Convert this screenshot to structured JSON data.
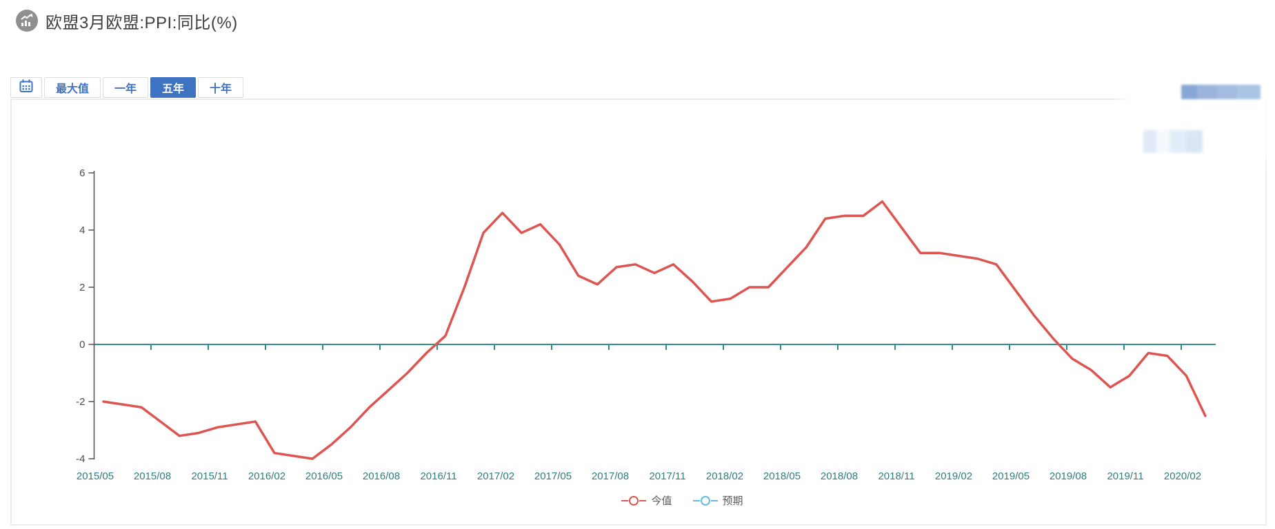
{
  "header": {
    "title": "欧盟3月欧盟:PPI:同比(%)"
  },
  "toolbar": {
    "calendar_button": {
      "icon": "calendar-icon"
    },
    "buttons": [
      {
        "key": "max",
        "label": "最大值",
        "active": false
      },
      {
        "key": "one-year",
        "label": "一年",
        "active": false
      },
      {
        "key": "five-year",
        "label": "五年",
        "active": true
      },
      {
        "key": "ten-year",
        "label": "十年",
        "active": false
      }
    ]
  },
  "legend": {
    "items": [
      {
        "label": "今值",
        "color": "#dd5451"
      },
      {
        "label": "预期",
        "color": "#5bc0de"
      }
    ]
  },
  "colors": {
    "actual_line": "#dd5451",
    "expected_line": "#5bc0de",
    "x_axis_line": "#2e8c8c",
    "x_tick_label": "#2e7d7d",
    "y_axis_line": "#4f4f4f",
    "y_tick_label": "#4a4a4a",
    "accent_blue": "#3e73c2"
  },
  "chart_data": {
    "type": "line",
    "title": "欧盟3月欧盟:PPI:同比(%)",
    "xlabel": "",
    "ylabel": "",
    "ylim": [
      -4,
      6
    ],
    "y_ticks": [
      6,
      4,
      2,
      0,
      -2,
      -4
    ],
    "grid": false,
    "legend_position": "bottom",
    "x_tick_labels": [
      "2015/05",
      "2015/08",
      "2015/11",
      "2016/02",
      "2016/05",
      "2016/08",
      "2016/11",
      "2017/02",
      "2017/05",
      "2017/08",
      "2017/11",
      "2018/02",
      "2018/05",
      "2018/08",
      "2018/11",
      "2019/02",
      "2019/05",
      "2019/08",
      "2019/11",
      "2020/02"
    ],
    "months": [
      "2015/05",
      "2015/06",
      "2015/07",
      "2015/08",
      "2015/09",
      "2015/10",
      "2015/11",
      "2015/12",
      "2016/01",
      "2016/02",
      "2016/03",
      "2016/04",
      "2016/05",
      "2016/06",
      "2016/07",
      "2016/08",
      "2016/09",
      "2016/10",
      "2016/11",
      "2016/12",
      "2017/01",
      "2017/02",
      "2017/03",
      "2017/04",
      "2017/05",
      "2017/06",
      "2017/07",
      "2017/08",
      "2017/09",
      "2017/10",
      "2017/11",
      "2017/12",
      "2018/01",
      "2018/02",
      "2018/03",
      "2018/04",
      "2018/05",
      "2018/06",
      "2018/07",
      "2018/08",
      "2018/09",
      "2018/10",
      "2018/11",
      "2018/12",
      "2019/01",
      "2019/02",
      "2019/03",
      "2019/04",
      "2019/05",
      "2019/06",
      "2019/07",
      "2019/08",
      "2019/09",
      "2019/10",
      "2019/11",
      "2019/12",
      "2020/01",
      "2020/02",
      "2020/03"
    ],
    "series": [
      {
        "name": "今值",
        "color": "#dd5451",
        "values": [
          -2.0,
          -2.1,
          -2.2,
          -2.7,
          -3.2,
          -3.1,
          -2.9,
          -2.8,
          -2.7,
          -3.8,
          -3.9,
          -4.0,
          -3.5,
          -2.9,
          -2.2,
          -1.6,
          -1.0,
          -0.3,
          0.3,
          2.0,
          3.9,
          4.6,
          3.9,
          4.2,
          3.5,
          2.4,
          2.1,
          2.7,
          2.8,
          2.5,
          2.8,
          2.2,
          1.5,
          1.6,
          2.0,
          2.0,
          2.7,
          3.4,
          4.4,
          4.5,
          4.5,
          5.0,
          4.1,
          3.2,
          3.2,
          3.1,
          3.0,
          2.8,
          1.9,
          1.0,
          0.2,
          -0.5,
          -0.9,
          -1.5,
          -1.1,
          -0.3,
          -0.4,
          -1.1,
          -2.5
        ]
      },
      {
        "name": "预期",
        "color": "#5bc0de",
        "constant": 0
      }
    ]
  }
}
